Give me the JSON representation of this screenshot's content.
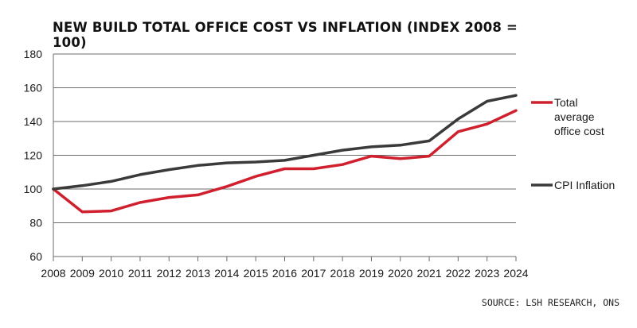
{
  "header": {
    "title": "NEW BUILD TOTAL OFFICE COST VS INFLATION (INDEX 2008 = 100)"
  },
  "footer": {
    "source": "SOURCE: LSH RESEARCH, ONS"
  },
  "chart_data": {
    "type": "line",
    "title": "NEW BUILD TOTAL OFFICE COST VS INFLATION (INDEX 2008 = 100)",
    "xlabel": "",
    "ylabel": "",
    "x": [
      "2008",
      "2009",
      "2010",
      "2011",
      "2012",
      "2013",
      "2014",
      "2015",
      "2016",
      "2017",
      "2018",
      "2019",
      "2020",
      "2021",
      "2022",
      "2023",
      "2024"
    ],
    "ylim": [
      60,
      180
    ],
    "yticks": [
      60,
      80,
      100,
      120,
      140,
      160,
      180
    ],
    "grid": true,
    "legend_position": "right",
    "series": [
      {
        "name": "Total average office cost",
        "legend_lines": [
          "Total",
          "average",
          "office cost"
        ],
        "color": "#d0202e",
        "values": [
          100,
          86.5,
          87,
          92,
          95,
          96.5,
          101.5,
          107.5,
          112,
          112,
          114.5,
          119.5,
          118,
          119.5,
          134,
          138.5,
          146.5
        ]
      },
      {
        "name": "CPI Inflation",
        "legend_lines": [
          "CPI Inflation"
        ],
        "color": "#3a3a3a",
        "values": [
          100,
          102,
          104.5,
          108.5,
          111.5,
          114,
          115.5,
          116,
          117,
          120,
          123,
          125,
          126,
          128.5,
          141.5,
          152,
          155.5
        ]
      }
    ]
  }
}
